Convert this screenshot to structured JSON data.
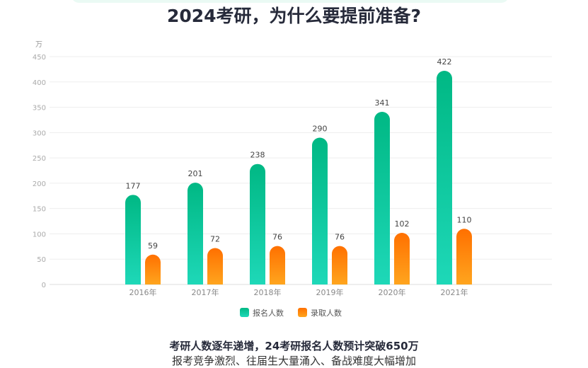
{
  "title": "2024考研，为什么要提前准备?",
  "chart_data": {
    "type": "bar",
    "unit_label": "万",
    "categories": [
      "2016年",
      "2017年",
      "2018年",
      "2019年",
      "2020年",
      "2021年"
    ],
    "series": [
      {
        "name": "报名人数",
        "values": [
          177,
          201,
          238,
          290,
          341,
          422
        ],
        "color_top": "#00b884",
        "color_bottom": "#1ed8b8"
      },
      {
        "name": "录取人数",
        "values": [
          59,
          72,
          76,
          76,
          102,
          110
        ],
        "color_top": "#ff7000",
        "color_bottom": "#ffa51e"
      }
    ],
    "ylim": [
      0,
      450
    ],
    "yticks": [
      0,
      50,
      100,
      150,
      200,
      250,
      300,
      350,
      400,
      450
    ],
    "grid": true,
    "legend_position": "bottom",
    "data_labels": true
  },
  "caption": {
    "line1": "考研人数逐年递增，24考研报名人数预计突破650万",
    "line2": "报考竞争激烈、往届生大量涌入、备战难度大幅增加"
  }
}
